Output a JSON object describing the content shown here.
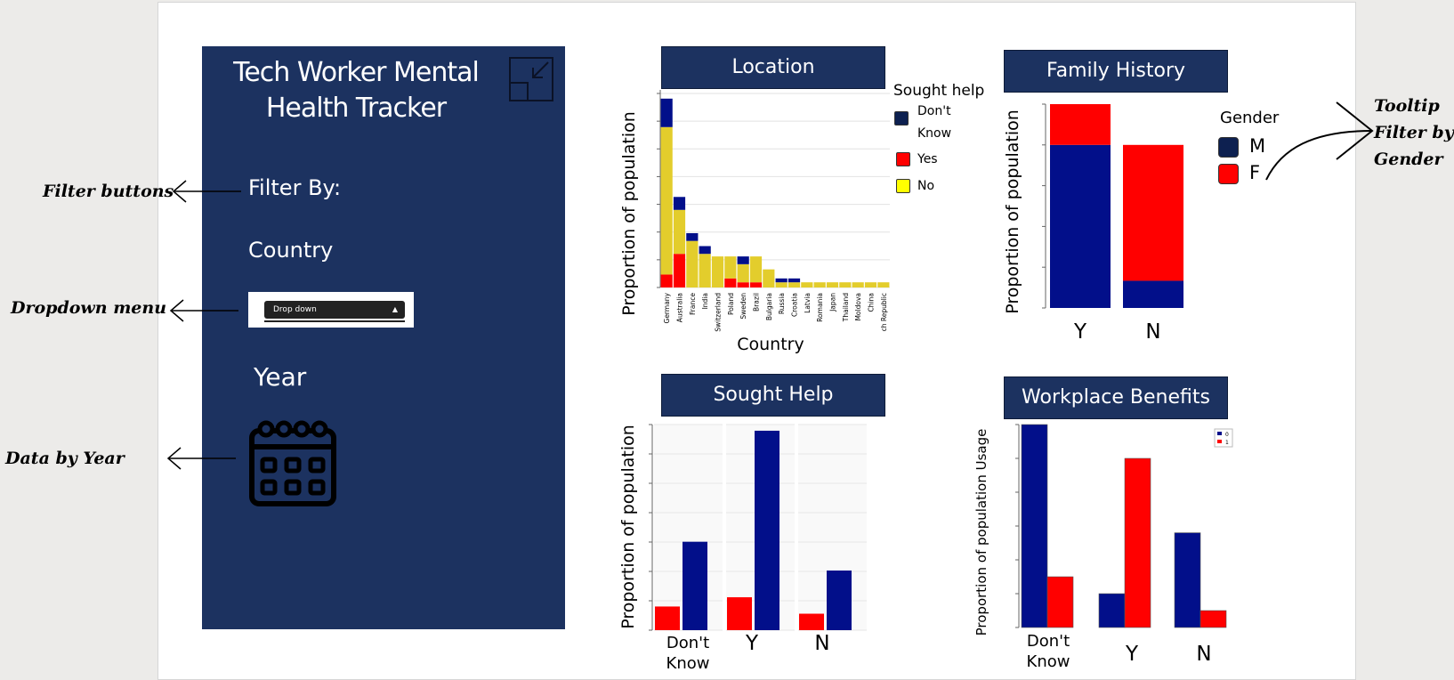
{
  "sidebar": {
    "title": "Tech Worker Mental Health Tracker",
    "filter_by": "Filter By:",
    "country": "Country",
    "dropdown_label": "Drop down",
    "year": "Year",
    "bg_color": "#1c3260",
    "icons": [
      "collapse-icon",
      "calendar-icon"
    ]
  },
  "annotations": {
    "filter_buttons": "Filter buttons",
    "dropdown_menu": "Dropdown menu",
    "data_by_year": "Data by Year",
    "tooltip_line1": "Tooltip",
    "tooltip_line2": "Filter by",
    "tooltip_line3": "Gender"
  },
  "colors": {
    "navy": "#020f8a",
    "red": "#ff0000",
    "yellow": "#e3cd2c",
    "dark": "#0d2050"
  },
  "chart_data": [
    {
      "type": "bar",
      "title": "Location",
      "xlabel": "Country",
      "ylabel": "Proportion of population",
      "stacked": true,
      "legend_title": "Sought help",
      "categories": [
        "Germany",
        "Australia",
        "France",
        "India",
        "Switzerland",
        "Poland",
        "Sweden",
        "Brazil",
        "Bulgaria",
        "Russia",
        "Croatia",
        "Latvia",
        "Romania",
        "Japan",
        "Thailand",
        "Moldova",
        "China",
        "Czech Republic"
      ],
      "category_labels": [
        "Germany",
        "Australia",
        "France",
        "India",
        "Switzerland",
        "Poland",
        "Sweden",
        "Brazil",
        "Bulgaria",
        "Russia",
        "Croatia",
        "Latvia",
        "Romania",
        "Japan",
        "Thailand",
        "Moldova",
        "China",
        "ch Republic"
      ],
      "series": [
        {
          "name": "Yes",
          "color": "#ff0000",
          "values": [
            0.05,
            0.13,
            0,
            0,
            0,
            0.035,
            0.02,
            0.02,
            0,
            0,
            0,
            0,
            0,
            0,
            0,
            0,
            0,
            0
          ]
        },
        {
          "name": "No",
          "color": "#e3cd2c",
          "values": [
            0.57,
            0.17,
            0.18,
            0.13,
            0.12,
            0.085,
            0.07,
            0.1,
            0.07,
            0.02,
            0.02,
            0.02,
            0.02,
            0.02,
            0.02,
            0.02,
            0.02,
            0.02
          ]
        },
        {
          "name": "Don't Know",
          "color": "#020f8a",
          "values": [
            0.11,
            0.05,
            0.03,
            0.03,
            0,
            0,
            0.03,
            0,
            0,
            0.015,
            0.015,
            0,
            0,
            0,
            0,
            0,
            0,
            0
          ]
        }
      ],
      "legend_order": [
        "Don't Know",
        "Yes",
        "No"
      ],
      "legend_labels": [
        "Don't",
        "Know",
        "Yes",
        "No"
      ],
      "ylim": [
        0,
        0.75
      ]
    },
    {
      "type": "bar",
      "title": "Family History",
      "ylabel": "Proportion of population",
      "stacked": true,
      "legend_title": "Gender",
      "categories": [
        "Y",
        "N"
      ],
      "series": [
        {
          "name": "M",
          "color": "#020f8a",
          "values": [
            0.6,
            0.1
          ]
        },
        {
          "name": "F",
          "color": "#ff0000",
          "values": [
            0.15,
            0.5
          ]
        }
      ],
      "ylim": [
        0,
        0.75
      ]
    },
    {
      "type": "bar",
      "title": "Sought Help",
      "ylabel": "Proportion of population",
      "facets": [
        "Don't Know",
        "Y",
        "N"
      ],
      "facet_labels": [
        "Don't",
        "Know",
        "Y",
        "N"
      ],
      "series": [
        {
          "name": "red",
          "color": "#ff0000",
          "values": [
            0.115,
            0.16,
            0.08
          ]
        },
        {
          "name": "navy",
          "color": "#020f8a",
          "values": [
            0.43,
            0.97,
            0.29
          ]
        }
      ],
      "ylim": [
        0,
        1.0
      ]
    },
    {
      "type": "bar",
      "title": "Workplace Benefits",
      "ylabel": "Proportion of population Usage",
      "categories": [
        "Don't Know",
        "Y",
        "N"
      ],
      "category_labels": [
        "Don't",
        "Know",
        "Y",
        "N"
      ],
      "legend_labels": [
        "0",
        "1"
      ],
      "series": [
        {
          "name": "0",
          "color": "#020f8a",
          "values": [
            0.6,
            0.1,
            0.28
          ]
        },
        {
          "name": "1",
          "color": "#ff0000",
          "values": [
            0.15,
            0.5,
            0.05
          ]
        }
      ],
      "ylim": [
        0,
        0.6
      ]
    }
  ]
}
